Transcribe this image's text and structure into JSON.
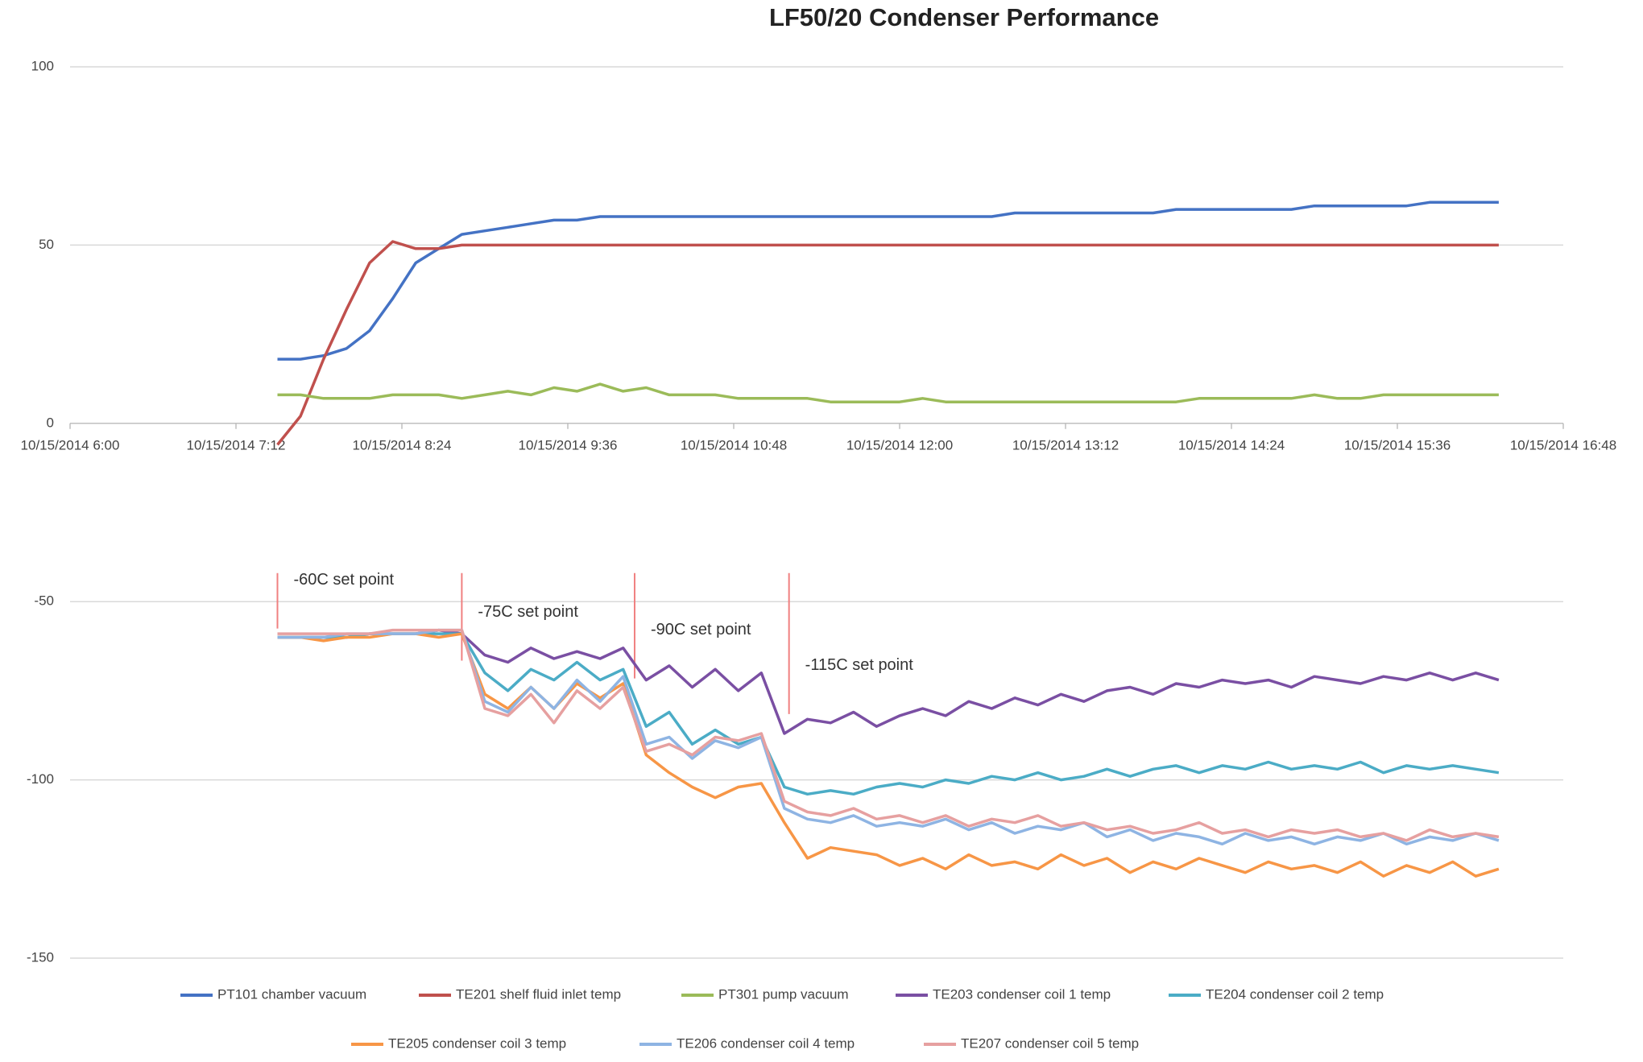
{
  "chart_data": {
    "type": "line",
    "title": "LF50/20 Condenser Performance",
    "x": [
      "2014-10-15T07:30",
      "2014-10-15T07:40",
      "2014-10-15T07:50",
      "2014-10-15T08:00",
      "2014-10-15T08:10",
      "2014-10-15T08:20",
      "2014-10-15T08:30",
      "2014-10-15T08:40",
      "2014-10-15T08:50",
      "2014-10-15T09:00",
      "2014-10-15T09:10",
      "2014-10-15T09:20",
      "2014-10-15T09:30",
      "2014-10-15T09:40",
      "2014-10-15T09:50",
      "2014-10-15T10:00",
      "2014-10-15T10:10",
      "2014-10-15T10:20",
      "2014-10-15T10:30",
      "2014-10-15T10:40",
      "2014-10-15T10:50",
      "2014-10-15T11:00",
      "2014-10-15T11:10",
      "2014-10-15T11:20",
      "2014-10-15T11:30",
      "2014-10-15T11:40",
      "2014-10-15T11:50",
      "2014-10-15T12:00",
      "2014-10-15T12:10",
      "2014-10-15T12:20",
      "2014-10-15T12:30",
      "2014-10-15T12:40",
      "2014-10-15T12:50",
      "2014-10-15T13:00",
      "2014-10-15T13:10",
      "2014-10-15T13:20",
      "2014-10-15T13:30",
      "2014-10-15T13:40",
      "2014-10-15T13:50",
      "2014-10-15T14:00",
      "2014-10-15T14:10",
      "2014-10-15T14:20",
      "2014-10-15T14:30",
      "2014-10-15T14:40",
      "2014-10-15T14:50",
      "2014-10-15T15:00",
      "2014-10-15T15:10",
      "2014-10-15T15:20",
      "2014-10-15T15:30",
      "2014-10-15T15:40",
      "2014-10-15T15:50",
      "2014-10-15T16:00",
      "2014-10-15T16:10",
      "2014-10-15T16:20"
    ],
    "series": [
      {
        "name": "PT101 chamber vacuum",
        "color": "#4472c4",
        "values": [
          18,
          18,
          19,
          21,
          26,
          35,
          45,
          49,
          53,
          54,
          55,
          56,
          57,
          57,
          58,
          58,
          58,
          58,
          58,
          58,
          58,
          58,
          58,
          58,
          58,
          58,
          58,
          58,
          58,
          58,
          58,
          58,
          59,
          59,
          59,
          59,
          59,
          59,
          59,
          60,
          60,
          60,
          60,
          60,
          60,
          61,
          61,
          61,
          61,
          61,
          62,
          62,
          62,
          62
        ]
      },
      {
        "name": "TE201 shelf fluid inlet temp",
        "color": "#c0504d",
        "values": [
          -6,
          2,
          18,
          32,
          45,
          51,
          49,
          49,
          50,
          50,
          50,
          50,
          50,
          50,
          50,
          50,
          50,
          50,
          50,
          50,
          50,
          50,
          50,
          50,
          50,
          50,
          50,
          50,
          50,
          50,
          50,
          50,
          50,
          50,
          50,
          50,
          50,
          50,
          50,
          50,
          50,
          50,
          50,
          50,
          50,
          50,
          50,
          50,
          50,
          50,
          50,
          50,
          50,
          50
        ]
      },
      {
        "name": "PT301 pump vacuum",
        "color": "#9bbb59",
        "values": [
          8,
          8,
          7,
          7,
          7,
          8,
          8,
          8,
          7,
          8,
          9,
          8,
          10,
          9,
          11,
          9,
          10,
          8,
          8,
          8,
          7,
          7,
          7,
          7,
          6,
          6,
          6,
          6,
          7,
          6,
          6,
          6,
          6,
          6,
          6,
          6,
          6,
          6,
          6,
          6,
          7,
          7,
          7,
          7,
          7,
          8,
          7,
          7,
          8,
          8,
          8,
          8,
          8,
          8
        ]
      },
      {
        "name": "TE203 condenser coil 1 temp",
        "color": "#7a4fa3",
        "values": [
          -60,
          -60,
          -60,
          -60,
          -59,
          -59,
          -59,
          -58,
          -59,
          -65,
          -67,
          -63,
          -66,
          -64,
          -66,
          -63,
          -72,
          -68,
          -74,
          -69,
          -75,
          -70,
          -87,
          -83,
          -84,
          -81,
          -85,
          -82,
          -80,
          -82,
          -78,
          -80,
          -77,
          -79,
          -76,
          -78,
          -75,
          -74,
          -76,
          -73,
          -74,
          -72,
          -73,
          -72,
          -74,
          -71,
          -72,
          -73,
          -71,
          -72,
          -70,
          -72,
          -70,
          -72
        ]
      },
      {
        "name": "TE204 condenser coil 2 temp",
        "color": "#4bacc6",
        "values": [
          -60,
          -60,
          -60,
          -60,
          -59,
          -59,
          -59,
          -59,
          -59,
          -70,
          -75,
          -69,
          -72,
          -67,
          -72,
          -69,
          -85,
          -81,
          -90,
          -86,
          -90,
          -88,
          -102,
          -104,
          -103,
          -104,
          -102,
          -101,
          -102,
          -100,
          -101,
          -99,
          -100,
          -98,
          -100,
          -99,
          -97,
          -99,
          -97,
          -96,
          -98,
          -96,
          -97,
          -95,
          -97,
          -96,
          -97,
          -95,
          -98,
          -96,
          -97,
          -96,
          -97,
          -98
        ]
      },
      {
        "name": "TE205 condenser coil 3 temp",
        "color": "#f79646",
        "values": [
          -60,
          -60,
          -61,
          -60,
          -60,
          -59,
          -59,
          -60,
          -59,
          -76,
          -80,
          -74,
          -80,
          -73,
          -77,
          -73,
          -93,
          -98,
          -102,
          -105,
          -102,
          -101,
          -112,
          -122,
          -119,
          -120,
          -121,
          -124,
          -122,
          -125,
          -121,
          -124,
          -123,
          -125,
          -121,
          -124,
          -122,
          -126,
          -123,
          -125,
          -122,
          -124,
          -126,
          -123,
          -125,
          -124,
          -126,
          -123,
          -127,
          -124,
          -126,
          -123,
          -127,
          -125
        ]
      },
      {
        "name": "TE206 condenser coil 4 temp",
        "color": "#8eb4e3",
        "values": [
          -60,
          -60,
          -60,
          -59,
          -59,
          -59,
          -59,
          -58,
          -58,
          -78,
          -81,
          -74,
          -80,
          -72,
          -78,
          -71,
          -90,
          -88,
          -94,
          -89,
          -91,
          -88,
          -108,
          -111,
          -112,
          -110,
          -113,
          -112,
          -113,
          -111,
          -114,
          -112,
          -115,
          -113,
          -114,
          -112,
          -116,
          -114,
          -117,
          -115,
          -116,
          -118,
          -115,
          -117,
          -116,
          -118,
          -116,
          -117,
          -115,
          -118,
          -116,
          -117,
          -115,
          -117
        ]
      },
      {
        "name": "TE207 condenser coil 5 temp",
        "color": "#e6a0a0",
        "values": [
          -59,
          -59,
          -59,
          -59,
          -59,
          -58,
          -58,
          -58,
          -58,
          -80,
          -82,
          -76,
          -84,
          -75,
          -80,
          -74,
          -92,
          -90,
          -93,
          -88,
          -89,
          -87,
          -106,
          -109,
          -110,
          -108,
          -111,
          -110,
          -112,
          -110,
          -113,
          -111,
          -112,
          -110,
          -113,
          -112,
          -114,
          -113,
          -115,
          -114,
          -112,
          -115,
          -114,
          -116,
          -114,
          -115,
          -114,
          -116,
          -115,
          -117,
          -114,
          -116,
          -115,
          -116
        ]
      }
    ],
    "xlim": [
      "2014-10-15T06:00",
      "2014-10-15T16:48"
    ],
    "xticks": [
      {
        "value": "2014-10-15T06:00",
        "label": "10/15/2014 6:00"
      },
      {
        "value": "2014-10-15T07:12",
        "label": "10/15/2014 7:12"
      },
      {
        "value": "2014-10-15T08:24",
        "label": "10/15/2014 8:24"
      },
      {
        "value": "2014-10-15T09:36",
        "label": "10/15/2014 9:36"
      },
      {
        "value": "2014-10-15T10:48",
        "label": "10/15/2014 10:48"
      },
      {
        "value": "2014-10-15T12:00",
        "label": "10/15/2014 12:00"
      },
      {
        "value": "2014-10-15T13:12",
        "label": "10/15/2014 13:12"
      },
      {
        "value": "2014-10-15T14:24",
        "label": "10/15/2014 14:24"
      },
      {
        "value": "2014-10-15T15:36",
        "label": "10/15/2014 15:36"
      },
      {
        "value": "2014-10-15T16:48",
        "label": "10/15/2014 16:48"
      }
    ],
    "ylim": [
      -150,
      100
    ],
    "yticks": [
      100,
      50,
      0,
      -50,
      -100,
      -150
    ],
    "grid": true,
    "legend": "bottom",
    "annotations": [
      {
        "text": "-60C set point",
        "x": "2014-10-15T07:30",
        "y": -44
      },
      {
        "text": "-75C set point",
        "x": "2014-10-15T08:50",
        "y": -53
      },
      {
        "text": "-90C set point",
        "x": "2014-10-15T10:05",
        "y": -58
      },
      {
        "text": "-115C set point",
        "x": "2014-10-15T11:12",
        "y": -68
      }
    ],
    "annotation_color": "#f08080"
  }
}
